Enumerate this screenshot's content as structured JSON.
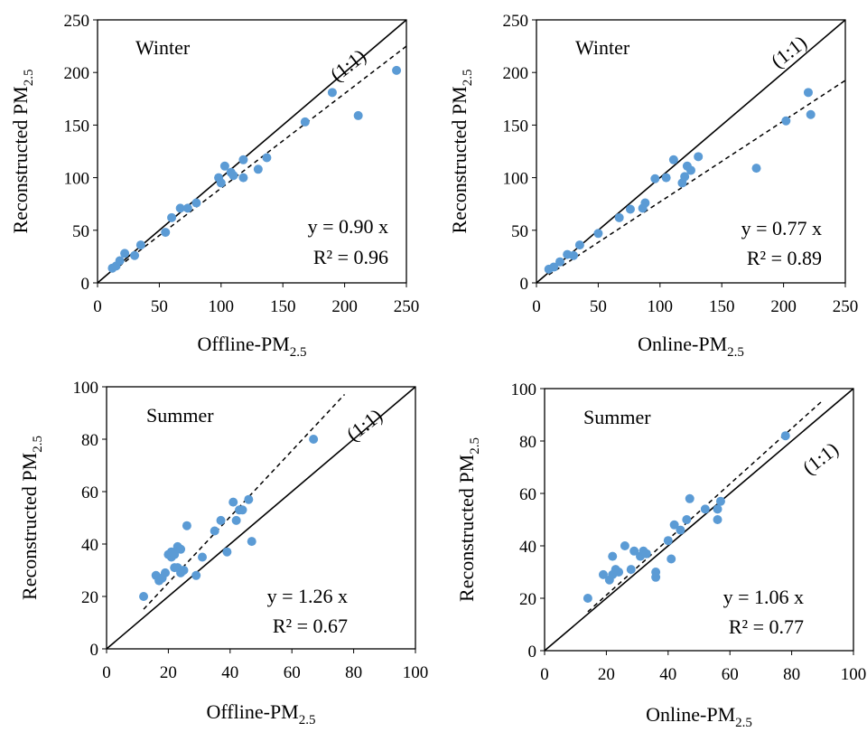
{
  "chart_data": [
    {
      "type": "scatter",
      "season_label": "Winter",
      "xlabel": "Offline-PM",
      "xlabel_sub": "2.5",
      "ylabel": "Reconstructed  PM",
      "ylabel_sub": "2.5",
      "xlim": [
        0,
        250
      ],
      "ylim": [
        0,
        250
      ],
      "xticks": [
        "0",
        "50",
        "100",
        "150",
        "200",
        "250"
      ],
      "yticks": [
        "0",
        "50",
        "100",
        "150",
        "200",
        "250"
      ],
      "one_to_one_label": "(1:1)",
      "regression_slope": 0.9,
      "equation": "y = 0.90 x",
      "r2": "R² = 0.96",
      "marker_color": "#5b9bd5",
      "points": [
        [
          12,
          14
        ],
        [
          15,
          16
        ],
        [
          18,
          21
        ],
        [
          22,
          28
        ],
        [
          30,
          26
        ],
        [
          35,
          36
        ],
        [
          55,
          48
        ],
        [
          60,
          62
        ],
        [
          67,
          71
        ],
        [
          73,
          71
        ],
        [
          80,
          76
        ],
        [
          98,
          100
        ],
        [
          100,
          95
        ],
        [
          103,
          111
        ],
        [
          108,
          105
        ],
        [
          110,
          102
        ],
        [
          118,
          117
        ],
        [
          118,
          100
        ],
        [
          130,
          108
        ],
        [
          137,
          119
        ],
        [
          168,
          153
        ],
        [
          190,
          181
        ],
        [
          211,
          159
        ],
        [
          242,
          202
        ]
      ]
    },
    {
      "type": "scatter",
      "season_label": "Winter",
      "xlabel": "Online-PM",
      "xlabel_sub": "2.5",
      "ylabel": "Reconstructed  PM",
      "ylabel_sub": "2.5",
      "xlim": [
        0,
        250
      ],
      "ylim": [
        0,
        250
      ],
      "xticks": [
        "0",
        "50",
        "100",
        "150",
        "200",
        "250"
      ],
      "yticks": [
        "0",
        "50",
        "100",
        "150",
        "200",
        "250"
      ],
      "one_to_one_label": "(1:1)",
      "regression_slope": 0.77,
      "equation": "y = 0.77 x",
      "r2": "R² = 0.89",
      "marker_color": "#5b9bd5",
      "points": [
        [
          10,
          13
        ],
        [
          14,
          15
        ],
        [
          19,
          20
        ],
        [
          25,
          27
        ],
        [
          30,
          26
        ],
        [
          35,
          36
        ],
        [
          50,
          47
        ],
        [
          67,
          62
        ],
        [
          76,
          70
        ],
        [
          86,
          71
        ],
        [
          88,
          76
        ],
        [
          96,
          99
        ],
        [
          105,
          100
        ],
        [
          111,
          117
        ],
        [
          118,
          95
        ],
        [
          120,
          101
        ],
        [
          122,
          111
        ],
        [
          125,
          107
        ],
        [
          131,
          120
        ],
        [
          178,
          109
        ],
        [
          202,
          154
        ],
        [
          220,
          181
        ],
        [
          222,
          160
        ]
      ]
    },
    {
      "type": "scatter",
      "season_label": "Summer",
      "xlabel": "Offline-PM",
      "xlabel_sub": "2.5",
      "ylabel": "Reconstructed  PM",
      "ylabel_sub": "2.5",
      "xlim": [
        0,
        100
      ],
      "ylim": [
        0,
        100
      ],
      "xticks": [
        "0",
        "20",
        "40",
        "60",
        "80",
        "100"
      ],
      "yticks": [
        "0",
        "20",
        "40",
        "60",
        "80",
        "100"
      ],
      "one_to_one_label": "(1:1)",
      "regression_slope": 1.26,
      "equation": "y = 1.26 x",
      "r2": "R² = 0.67",
      "marker_color": "#5b9bd5",
      "points": [
        [
          12,
          20
        ],
        [
          16,
          28
        ],
        [
          17,
          26
        ],
        [
          18,
          27
        ],
        [
          19,
          29
        ],
        [
          20,
          36
        ],
        [
          21,
          35
        ],
        [
          21,
          37
        ],
        [
          22,
          31
        ],
        [
          22,
          36
        ],
        [
          23,
          39
        ],
        [
          23,
          31
        ],
        [
          24,
          29
        ],
        [
          24,
          38
        ],
        [
          25,
          30
        ],
        [
          26,
          47
        ],
        [
          29,
          28
        ],
        [
          31,
          35
        ],
        [
          35,
          45
        ],
        [
          37,
          49
        ],
        [
          39,
          37
        ],
        [
          41,
          56
        ],
        [
          42,
          49
        ],
        [
          43,
          53
        ],
        [
          44,
          53
        ],
        [
          46,
          57
        ],
        [
          47,
          41
        ],
        [
          67,
          80
        ]
      ]
    },
    {
      "type": "scatter",
      "season_label": "Summer",
      "xlabel": "Online-PM",
      "xlabel_sub": "2.5",
      "ylabel": "Reconstructed  PM",
      "ylabel_sub": "2.5",
      "xlim": [
        0,
        100
      ],
      "ylim": [
        0,
        100
      ],
      "xticks": [
        "0",
        "20",
        "40",
        "60",
        "80",
        "100"
      ],
      "yticks": [
        "0",
        "20",
        "40",
        "60",
        "80",
        "100"
      ],
      "one_to_one_label": "(1:1)",
      "regression_slope": 1.06,
      "equation": "y = 1.06 x",
      "r2": "R² = 0.77",
      "marker_color": "#5b9bd5",
      "points": [
        [
          14,
          20
        ],
        [
          19,
          29
        ],
        [
          21,
          27
        ],
        [
          22,
          29
        ],
        [
          22,
          36
        ],
        [
          23,
          31
        ],
        [
          24,
          30
        ],
        [
          26,
          40
        ],
        [
          28,
          31
        ],
        [
          29,
          38
        ],
        [
          31,
          36
        ],
        [
          32,
          38
        ],
        [
          33,
          37
        ],
        [
          36,
          28
        ],
        [
          36,
          30
        ],
        [
          40,
          42
        ],
        [
          41,
          35
        ],
        [
          42,
          48
        ],
        [
          44,
          46
        ],
        [
          46,
          50
        ],
        [
          47,
          58
        ],
        [
          52,
          54
        ],
        [
          56,
          50
        ],
        [
          56,
          54
        ],
        [
          57,
          57
        ],
        [
          78,
          82
        ]
      ]
    }
  ]
}
